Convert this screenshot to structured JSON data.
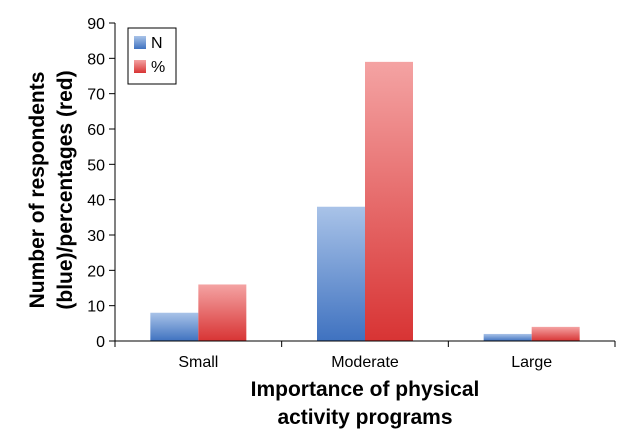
{
  "chart_data": {
    "type": "bar",
    "categories": [
      "Small",
      "Moderate",
      "Large"
    ],
    "series": [
      {
        "name": "N",
        "values": [
          8,
          38,
          2
        ],
        "color": "#4a78c4"
      },
      {
        "name": "%",
        "values": [
          16,
          79,
          4
        ],
        "color": "#d93a3a"
      }
    ],
    "xlabel_lines": [
      "Importance of physical",
      "activity programs"
    ],
    "ylabel_lines": [
      "Number of respondents",
      "(blue)/percentages (red)"
    ],
    "ylim": [
      0,
      90
    ],
    "ytick_step": 10,
    "yticks": [
      "0",
      "10",
      "20",
      "30",
      "40",
      "50",
      "60",
      "70",
      "80",
      "90"
    ],
    "grid": false,
    "legend_position": "top-left"
  }
}
